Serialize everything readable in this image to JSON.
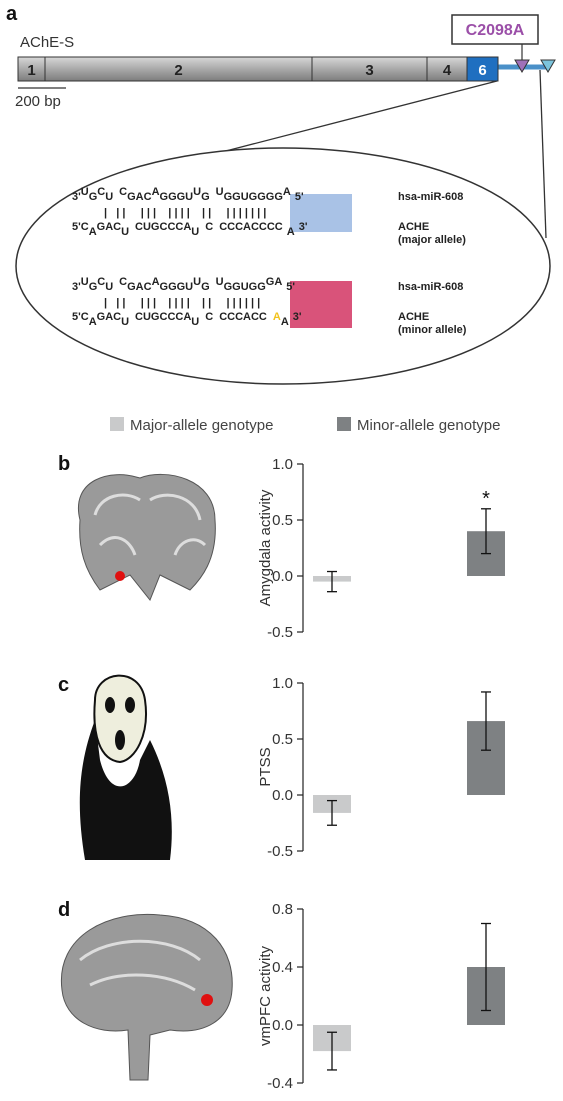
{
  "panels": [
    "a"
  ],
  "gene": {
    "title": "AChE-S",
    "exons": [
      "1",
      "2",
      "3",
      "4",
      "6"
    ],
    "variant": "C2098A",
    "scale": "200 bp"
  },
  "duplexes": [
    {
      "mirna": [
        "3'",
        "U",
        "G",
        "C",
        "U",
        "C",
        "GAC",
        "A",
        "GGGU",
        "U",
        "G",
        "U",
        "GGUGGGG",
        "A",
        "5'"
      ],
      "pairs": "|   | |     | | |    | | | |    | |     | | | | | | |",
      "target": [
        "5'",
        "C",
        "A",
        "GA",
        "C",
        "U",
        "CUG",
        "CCCA",
        "U",
        "C",
        "C",
        "CCACCCC",
        "A",
        "3'"
      ],
      "mirna_name": "hsa-miR-608",
      "target_name": "ACHE",
      "allele": "(major allele)"
    },
    {
      "mirna": [
        "3'",
        "U",
        "G",
        "C",
        "U",
        "C",
        "GAC",
        "A",
        "GGGU",
        "U",
        "G",
        "U",
        "GGUGG",
        "G",
        "A",
        "5'"
      ],
      "pairs": "|   | |     | | |    | | | |    | |     | | | | | |",
      "target": [
        "5'",
        "C",
        "A",
        "GA",
        "C",
        "U",
        "CUG",
        "CCCA",
        "U",
        "C",
        "C",
        "CCACC",
        "A",
        "A",
        "3'"
      ],
      "mirna_name": "hsa-miR-608",
      "target_name": "ACHE",
      "allele": "(minor allele)"
    }
  ],
  "legend": [
    {
      "name": "Major-allele genotype",
      "color": "#c9cacb"
    },
    {
      "name": "Minor-allele genotype",
      "color": "#7e8183"
    }
  ],
  "chart_data": [
    {
      "type": "bar",
      "panel": "b",
      "ylabel": "Amygdala activity",
      "categories": [
        null,
        null
      ],
      "values": [
        -0.05,
        0.4
      ],
      "errors": [
        0.09,
        0.2
      ],
      "annotations": [
        "*"
      ],
      "ylim": [
        -0.5,
        1.0
      ],
      "yticks": [
        {
          "value": 1.0,
          "label": "1.0"
        },
        {
          "value": 0.5,
          "label": "0.5"
        },
        {
          "value": 0,
          "label": "0.0"
        },
        {
          "value": -0.5,
          "label": "-0.5"
        }
      ]
    },
    {
      "type": "bar",
      "panel": "c",
      "ylabel": "PTSS",
      "categories": [
        null,
        null
      ],
      "values": [
        -0.16,
        0.66
      ],
      "errors": [
        0.11,
        0.26
      ],
      "ylim": [
        -0.5,
        1.0
      ],
      "yticks": [
        {
          "value": 1.0,
          "label": "1.0"
        },
        {
          "value": 0.5,
          "label": "0.5"
        },
        {
          "value": 0,
          "label": "0.0"
        },
        {
          "value": -0.5,
          "label": "-0.5"
        }
      ]
    },
    {
      "type": "bar",
      "panel": "d",
      "ylabel": "vmPFC activity",
      "categories": [
        null,
        null
      ],
      "values": [
        -0.18,
        0.4
      ],
      "errors": [
        0.13,
        0.3
      ],
      "ylim": [
        -0.4,
        0.8
      ],
      "yticks": [
        {
          "value": 0.8,
          "label": "0.8"
        },
        {
          "value": 0.4,
          "label": "0.4"
        },
        {
          "value": 0,
          "label": "0.0"
        },
        {
          "value": -0.4,
          "label": "-0.4"
        }
      ]
    }
  ]
}
